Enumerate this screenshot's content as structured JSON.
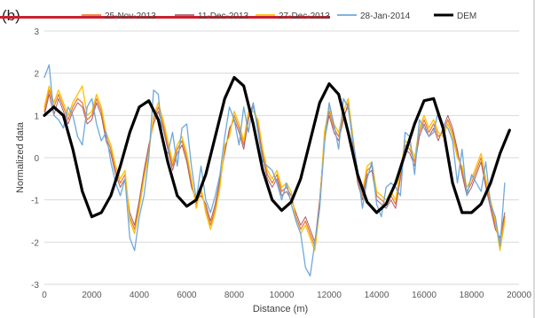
{
  "panel_label": "(b)",
  "colors": {
    "strike": "#c8212f",
    "grid": "#d9d9d9",
    "axis_text": "#595959"
  },
  "chart_data": {
    "type": "line",
    "title": "",
    "xlabel": "Distance (m)",
    "ylabel": "Normalized data",
    "xlim": [
      0,
      20000
    ],
    "ylim": [
      -3,
      3
    ],
    "xticks": [
      0,
      2000,
      4000,
      6000,
      8000,
      10000,
      12000,
      14000,
      16000,
      18000,
      20000
    ],
    "yticks": [
      -3,
      -2,
      -1,
      0,
      1,
      2,
      3
    ],
    "grid": "horizontal",
    "legend_position": "top",
    "series": [
      {
        "name": "25-Nov-2013",
        "color": "#ed7d31",
        "width": 1.3,
        "x": [
          0,
          200,
          400,
          600,
          800,
          1000,
          1200,
          1400,
          1600,
          1800,
          2000,
          2200,
          2400,
          2600,
          2800,
          3000,
          3200,
          3400,
          3600,
          3800,
          4000,
          4200,
          4400,
          4600,
          4800,
          5000,
          5200,
          5400,
          5600,
          5800,
          6000,
          6200,
          6400,
          6600,
          6800,
          7000,
          7200,
          7400,
          7600,
          7800,
          8000,
          8200,
          8400,
          8600,
          8800,
          9000,
          9200,
          9400,
          9600,
          9800,
          10000,
          10200,
          10400,
          10600,
          10800,
          11000,
          11200,
          11400,
          11600,
          11800,
          12000,
          12200,
          12400,
          12600,
          12800,
          13000,
          13200,
          13400,
          13600,
          13800,
          14000,
          14200,
          14400,
          14600,
          14800,
          15000,
          15200,
          15400,
          15600,
          15800,
          16000,
          16200,
          16400,
          16600,
          16800,
          17000,
          17200,
          17400,
          17600,
          17800,
          18000,
          18200,
          18400,
          18600,
          18800,
          19000,
          19200,
          19400
        ],
        "y": [
          1.1,
          1.6,
          1.2,
          1.5,
          1.2,
          0.9,
          1.2,
          1.4,
          1.3,
          0.9,
          1.0,
          1.4,
          1.1,
          0.5,
          0.2,
          -0.3,
          -0.6,
          -0.4,
          -1.4,
          -1.7,
          -1.1,
          -0.4,
          0.2,
          0.9,
          1.2,
          0.8,
          0.3,
          -0.2,
          0.2,
          0.4,
          0.0,
          -0.6,
          -1.1,
          -0.8,
          -1.2,
          -1.6,
          -1.2,
          -0.6,
          0.2,
          0.6,
          1.0,
          0.7,
          0.3,
          1.0,
          1.2,
          0.8,
          0.1,
          -0.4,
          -0.6,
          -0.4,
          -0.8,
          -0.7,
          -0.9,
          -1.4,
          -1.7,
          -1.5,
          -1.8,
          -2.1,
          -1.1,
          0.5,
          1.1,
          0.7,
          0.5,
          1.0,
          1.2,
          0.4,
          -0.5,
          -0.9,
          -0.3,
          -0.2,
          -0.9,
          -1.0,
          -1.1,
          -0.9,
          -1.1,
          -0.4,
          0.3,
          0.2,
          -0.1,
          0.6,
          0.9,
          0.6,
          0.8,
          0.5,
          0.6,
          0.9,
          0.6,
          0.1,
          -0.3,
          -0.8,
          -0.6,
          -0.3,
          0.0,
          -0.6,
          -1.1,
          -1.6,
          -2.0,
          -1.4
        ]
      },
      {
        "name": "11-Dec-2013",
        "color": "#a6606a",
        "width": 1.0,
        "x": [
          0,
          200,
          400,
          600,
          800,
          1000,
          1200,
          1400,
          1600,
          1800,
          2000,
          2200,
          2400,
          2600,
          2800,
          3000,
          3200,
          3400,
          3600,
          3800,
          4000,
          4200,
          4400,
          4600,
          4800,
          5000,
          5200,
          5400,
          5600,
          5800,
          6000,
          6200,
          6400,
          6600,
          6800,
          7000,
          7200,
          7400,
          7600,
          7800,
          8000,
          8200,
          8400,
          8600,
          8800,
          9000,
          9200,
          9400,
          9600,
          9800,
          10000,
          10200,
          10400,
          10600,
          10800,
          11000,
          11200,
          11400,
          11600,
          11800,
          12000,
          12200,
          12400,
          12600,
          12800,
          13000,
          13200,
          13400,
          13600,
          13800,
          14000,
          14200,
          14400,
          14600,
          14800,
          15000,
          15200,
          15400,
          15600,
          15800,
          16000,
          16200,
          16400,
          16600,
          16800,
          17000,
          17200,
          17400,
          17600,
          17800,
          18000,
          18200,
          18400,
          18600,
          18800,
          19000,
          19200,
          19400
        ],
        "y": [
          1.0,
          1.5,
          1.0,
          1.4,
          1.1,
          0.8,
          1.1,
          1.3,
          1.2,
          0.8,
          0.9,
          1.3,
          1.0,
          0.4,
          0.1,
          -0.4,
          -0.7,
          -0.5,
          -1.3,
          -1.6,
          -1.0,
          -0.3,
          0.3,
          0.8,
          1.1,
          0.7,
          0.2,
          -0.3,
          0.1,
          0.3,
          -0.1,
          -0.7,
          -1.0,
          -0.9,
          -1.1,
          -1.5,
          -1.1,
          -0.5,
          0.1,
          0.7,
          0.9,
          0.6,
          0.2,
          0.9,
          1.3,
          0.7,
          0.0,
          -0.5,
          -0.7,
          -0.5,
          -0.9,
          -0.8,
          -1.0,
          -1.3,
          -1.6,
          -1.4,
          -1.7,
          -2.0,
          -1.0,
          0.4,
          1.0,
          0.6,
          0.4,
          0.9,
          1.3,
          0.3,
          -0.6,
          -1.0,
          -0.4,
          -0.3,
          -1.0,
          -1.1,
          -1.2,
          -1.0,
          -1.2,
          -0.5,
          0.2,
          0.1,
          -0.2,
          0.5,
          0.8,
          0.5,
          0.7,
          0.4,
          0.7,
          1.0,
          0.7,
          0.2,
          -0.4,
          -0.9,
          -0.7,
          -0.4,
          -0.1,
          -0.7,
          -1.2,
          -1.7,
          -1.9,
          -1.3
        ]
      },
      {
        "name": "27-Dec-2013",
        "color": "#ffc000",
        "width": 1.3,
        "x": [
          0,
          200,
          400,
          600,
          800,
          1000,
          1200,
          1400,
          1600,
          1800,
          2000,
          2200,
          2400,
          2600,
          2800,
          3000,
          3200,
          3400,
          3600,
          3800,
          4000,
          4200,
          4400,
          4600,
          4800,
          5000,
          5200,
          5400,
          5600,
          5800,
          6000,
          6200,
          6400,
          6600,
          6800,
          7000,
          7200,
          7400,
          7600,
          7800,
          8000,
          8200,
          8400,
          8600,
          8800,
          9000,
          9200,
          9400,
          9600,
          9800,
          10000,
          10200,
          10400,
          10600,
          10800,
          11000,
          11200,
          11400,
          11600,
          11800,
          12000,
          12200,
          12400,
          12600,
          12800,
          13000,
          13200,
          13400,
          13600,
          13800,
          14000,
          14200,
          14400,
          14600,
          14800,
          15000,
          15200,
          15400,
          15600,
          15800,
          16000,
          16200,
          16400,
          16600,
          16800,
          17000,
          17200,
          17400,
          17600,
          17800,
          18000,
          18200,
          18400,
          18600,
          18800,
          19000,
          19200,
          19400
        ],
        "y": [
          1.2,
          1.7,
          1.3,
          1.6,
          1.3,
          1.0,
          1.3,
          1.5,
          1.7,
          1.0,
          1.1,
          1.5,
          1.2,
          0.6,
          0.3,
          -0.2,
          -0.5,
          -0.3,
          -1.5,
          -1.8,
          -1.2,
          -0.5,
          0.1,
          1.0,
          1.3,
          0.9,
          0.4,
          -0.1,
          0.3,
          0.5,
          0.1,
          -0.5,
          -1.2,
          -0.7,
          -1.3,
          -1.7,
          -1.3,
          -0.7,
          0.3,
          0.5,
          1.1,
          0.8,
          0.4,
          1.1,
          1.1,
          0.9,
          0.2,
          -0.3,
          -0.5,
          -0.3,
          -0.7,
          -0.6,
          -0.8,
          -1.5,
          -1.8,
          -1.6,
          -1.9,
          -2.2,
          -1.2,
          0.6,
          1.2,
          0.8,
          0.6,
          1.1,
          1.4,
          0.5,
          -0.4,
          -0.8,
          -0.2,
          -0.1,
          -0.8,
          -0.9,
          -1.0,
          -0.8,
          -1.0,
          -0.3,
          0.4,
          0.3,
          0.0,
          0.7,
          1.0,
          0.7,
          0.9,
          0.6,
          0.5,
          0.8,
          0.5,
          0.0,
          -0.2,
          -0.7,
          -0.5,
          -0.2,
          0.1,
          -0.5,
          -1.0,
          -1.5,
          -2.2,
          -1.5
        ]
      },
      {
        "name": "28-Jan-2014",
        "color": "#6fa8dc",
        "width": 1.3,
        "x": [
          0,
          200,
          400,
          600,
          800,
          1000,
          1200,
          1400,
          1600,
          1800,
          2000,
          2200,
          2400,
          2600,
          2800,
          3000,
          3200,
          3400,
          3600,
          3800,
          4000,
          4200,
          4400,
          4600,
          4800,
          5000,
          5200,
          5400,
          5600,
          5800,
          6000,
          6200,
          6400,
          6600,
          6800,
          7000,
          7200,
          7400,
          7600,
          7800,
          8000,
          8200,
          8400,
          8600,
          8800,
          9000,
          9200,
          9400,
          9600,
          9800,
          10000,
          10200,
          10400,
          10600,
          10800,
          11000,
          11200,
          11400,
          11600,
          11800,
          12000,
          12200,
          12400,
          12600,
          12800,
          13000,
          13200,
          13400,
          13600,
          13800,
          14000,
          14200,
          14400,
          14600,
          14800,
          15000,
          15200,
          15400,
          15600,
          15800,
          16000,
          16200,
          16400,
          16600,
          16800,
          17000,
          17200,
          17400,
          17600,
          17800,
          18000,
          18200,
          18400,
          18600,
          18800,
          19000,
          19200,
          19400
        ],
        "y": [
          1.9,
          2.2,
          1.0,
          0.9,
          0.7,
          1.2,
          1.0,
          0.5,
          0.3,
          1.2,
          1.4,
          0.8,
          0.4,
          0.6,
          -0.1,
          -0.6,
          -0.9,
          -0.5,
          -1.9,
          -2.2,
          -1.4,
          -0.9,
          0.0,
          1.6,
          1.5,
          0.3,
          0.1,
          0.6,
          -0.2,
          0.7,
          0.8,
          -0.2,
          -1.0,
          -0.2,
          -1.0,
          -1.3,
          -0.9,
          -0.4,
          0.5,
          1.2,
          0.9,
          0.3,
          1.2,
          0.6,
          1.3,
          0.6,
          -0.1,
          -0.2,
          -0.3,
          -0.6,
          -1.0,
          -0.6,
          -1.1,
          -1.5,
          -1.8,
          -2.6,
          -2.8,
          -2.0,
          -1.2,
          0.3,
          1.3,
          0.8,
          0.2,
          1.4,
          1.2,
          0.4,
          -0.3,
          -1.2,
          -0.5,
          -0.1,
          -1.1,
          -1.4,
          -0.7,
          -0.6,
          -0.7,
          -0.9,
          0.6,
          0.5,
          -0.4,
          0.9,
          0.7,
          0.5,
          0.6,
          1.1,
          0.8,
          0.7,
          0.4,
          -0.6,
          0.2,
          -0.9,
          -0.4,
          -0.6,
          -0.8,
          -0.1,
          -1.1,
          -1.4,
          -2.1,
          -0.6
        ]
      },
      {
        "name": "DEM",
        "color": "#000000",
        "width": 3.2,
        "x": [
          0,
          400,
          800,
          1200,
          1600,
          2000,
          2400,
          2800,
          3200,
          3600,
          4000,
          4400,
          4800,
          5200,
          5600,
          6000,
          6400,
          6800,
          7200,
          7600,
          8000,
          8400,
          8800,
          9200,
          9600,
          10000,
          10400,
          10800,
          11200,
          11600,
          12000,
          12400,
          12800,
          13200,
          13600,
          14000,
          14400,
          14800,
          15200,
          15600,
          16000,
          16400,
          16800,
          17200,
          17600,
          18000,
          18400,
          18800,
          19200,
          19600
        ],
        "y": [
          1.0,
          1.2,
          1.0,
          0.2,
          -0.8,
          -1.4,
          -1.3,
          -0.9,
          -0.2,
          0.6,
          1.2,
          1.35,
          0.9,
          -0.1,
          -0.9,
          -1.15,
          -1.0,
          -0.4,
          0.5,
          1.4,
          1.9,
          1.7,
          0.8,
          -0.3,
          -1.0,
          -1.25,
          -1.05,
          -0.5,
          0.4,
          1.3,
          1.75,
          1.5,
          0.6,
          -0.4,
          -1.05,
          -1.3,
          -1.1,
          -0.6,
          0.1,
          0.8,
          1.35,
          1.4,
          0.7,
          -0.6,
          -1.3,
          -1.3,
          -1.1,
          -0.6,
          0.1,
          0.65
        ]
      }
    ]
  }
}
